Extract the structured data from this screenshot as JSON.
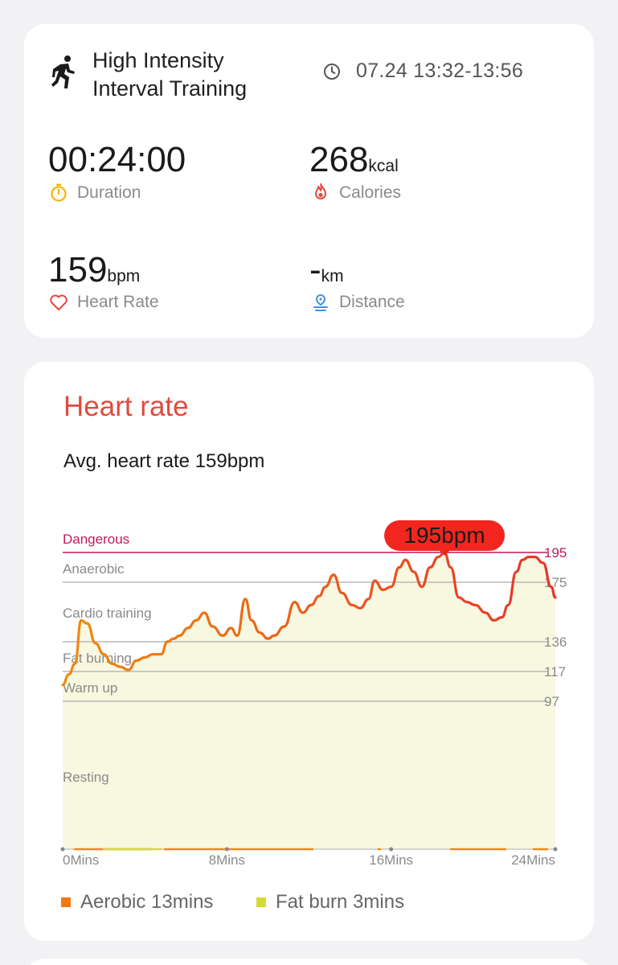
{
  "summary": {
    "title_line1": "High Intensity",
    "title_line2": "Interval Training",
    "time_range": "07.24 13:32-13:56",
    "duration": {
      "value": "00:24:00",
      "label": "Duration"
    },
    "calories": {
      "value": "268",
      "unit": "kcal",
      "label": "Calories"
    },
    "heart_rate": {
      "value": "159",
      "unit": "bpm",
      "label": "Heart Rate"
    },
    "distance": {
      "value": "-",
      "unit": "km",
      "label": "Distance"
    }
  },
  "hr_card": {
    "title": "Heart rate",
    "avg_text": "Avg. heart rate 159bpm",
    "peak_label": "195bpm",
    "legend": [
      {
        "label": "Aerobic 13mins",
        "color": "#f07a10"
      },
      {
        "label": "Fat burn 3mins",
        "color": "#d4dc33"
      }
    ]
  },
  "colors": {
    "accent_red": "#e04a3f",
    "dangerous": "#c2185b",
    "peak_badge": "#f2261f",
    "zone_fill": "#f7f8df",
    "line_orange": "#f08a12",
    "line_red": "#e8322a"
  },
  "chart_data": {
    "type": "line",
    "title": "Heart rate",
    "xlabel": "",
    "ylabel": "",
    "x_ticks": [
      "0Mins",
      "8Mins",
      "16Mins",
      "24Mins"
    ],
    "xlim": [
      0,
      24
    ],
    "zones": [
      {
        "name": "Dangerous",
        "threshold": 195
      },
      {
        "name": "Anaerobic",
        "threshold": 175
      },
      {
        "name": "Cardio training",
        "threshold": 136
      },
      {
        "name": "Fat burning",
        "threshold": 117
      },
      {
        "name": "Warm up",
        "threshold": 97
      },
      {
        "name": "Resting",
        "threshold": null
      }
    ],
    "threshold_labels": [
      "195",
      "175",
      "136",
      "117",
      "97"
    ],
    "peak": {
      "x": 18.6,
      "y": 195,
      "label": "195bpm"
    },
    "series": [
      {
        "x": [
          0,
          0.3,
          0.6,
          0.9,
          1.2,
          1.6,
          2.0,
          2.4,
          2.8,
          3.2,
          3.6,
          4.0,
          4.4,
          4.8,
          5.1,
          5.4,
          5.7,
          6.1,
          6.5,
          6.9,
          7.3,
          7.8,
          8.2,
          8.5,
          8.9,
          9.2,
          9.6,
          10.0,
          10.3,
          10.8,
          11.3,
          11.7,
          12.1,
          12.5,
          12.8,
          13.2,
          13.6,
          14.1,
          14.5,
          14.9,
          15.2,
          15.6,
          16.0,
          16.4,
          16.7,
          17.1,
          17.5,
          17.9,
          18.3,
          18.6,
          18.9,
          19.3,
          19.7,
          20.1,
          20.6,
          21.0,
          21.4,
          21.7,
          22.1,
          22.4,
          22.7,
          23.0,
          23.4,
          23.8,
          24.0
        ],
        "y": [
          108,
          115,
          122,
          150,
          148,
          135,
          128,
          122,
          120,
          118,
          124,
          126,
          128,
          128,
          136,
          138,
          140,
          145,
          150,
          155,
          146,
          140,
          145,
          140,
          164,
          150,
          142,
          138,
          140,
          146,
          162,
          155,
          160,
          166,
          172,
          180,
          168,
          160,
          158,
          164,
          176,
          170,
          172,
          185,
          190,
          182,
          172,
          185,
          192,
          195,
          185,
          165,
          162,
          160,
          155,
          150,
          152,
          160,
          182,
          190,
          192,
          192,
          188,
          172,
          165
        ]
      }
    ]
  }
}
